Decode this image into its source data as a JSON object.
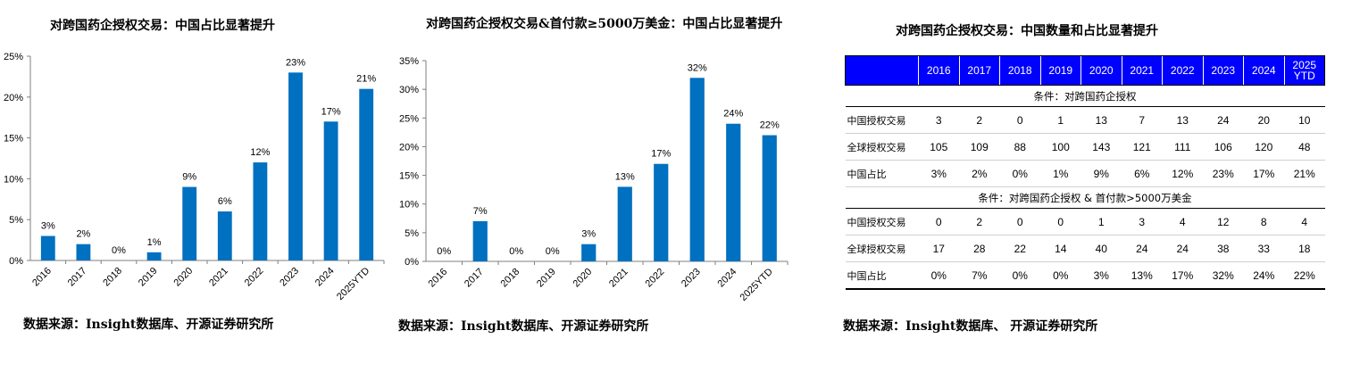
{
  "chart_data": [
    {
      "type": "bar",
      "title": "对跨国药企授权交易：中国占比显著提升",
      "categories": [
        "2016",
        "2017",
        "2018",
        "2019",
        "2020",
        "2021",
        "2022",
        "2023",
        "2024",
        "2025YTD"
      ],
      "values": [
        3,
        2,
        0,
        1,
        9,
        6,
        12,
        23,
        17,
        21
      ],
      "data_labels": [
        "3%",
        "2%",
        "0%",
        "1%",
        "9%",
        "6%",
        "12%",
        "23%",
        "17%",
        "21%"
      ],
      "y_ticks": [
        "0%",
        "5%",
        "10%",
        "15%",
        "20%",
        "25%"
      ],
      "ylim": [
        0,
        25
      ],
      "xlabel": "",
      "ylabel": "",
      "grid": false,
      "bar_color": "#0070c0",
      "source": "数据来源：Insight数据库、开源证券研究所"
    },
    {
      "type": "bar",
      "title": "对跨国药企授权交易&首付款≥5000万美金：中国占比显著提升",
      "categories": [
        "2016",
        "2017",
        "2018",
        "2019",
        "2020",
        "2021",
        "2022",
        "2023",
        "2024",
        "2025YTD"
      ],
      "values": [
        0,
        7,
        0,
        0,
        3,
        13,
        17,
        32,
        24,
        22
      ],
      "data_labels": [
        "0%",
        "7%",
        "0%",
        "0%",
        "3%",
        "13%",
        "17%",
        "32%",
        "24%",
        "22%"
      ],
      "y_ticks": [
        "0%",
        "5%",
        "10%",
        "15%",
        "20%",
        "25%",
        "30%",
        "35%"
      ],
      "ylim": [
        0,
        35
      ],
      "xlabel": "",
      "ylabel": "",
      "grid": false,
      "bar_color": "#0070c0",
      "source": "数据来源：Insight数据库、开源证券研究所"
    },
    {
      "type": "table",
      "title": "对跨国药企授权交易：中国数量和占比显著提升",
      "header_color": "#0000ff",
      "columns": [
        "",
        "2016",
        "2017",
        "2018",
        "2019",
        "2020",
        "2021",
        "2022",
        "2023",
        "2024",
        "2025\nYTD"
      ],
      "sections": [
        {
          "condition": "条件：对跨国药企授权",
          "rows": [
            {
              "label": "中国授权交易",
              "values": [
                "3",
                "2",
                "0",
                "1",
                "13",
                "7",
                "13",
                "24",
                "20",
                "10"
              ]
            },
            {
              "label": "全球授权交易",
              "values": [
                "105",
                "109",
                "88",
                "100",
                "143",
                "121",
                "111",
                "106",
                "120",
                "48"
              ]
            },
            {
              "label": "中国占比",
              "values": [
                "3%",
                "2%",
                "0%",
                "1%",
                "9%",
                "6%",
                "12%",
                "23%",
                "17%",
                "21%"
              ]
            }
          ]
        },
        {
          "condition": "条件：对跨国药企授权 & 首付款>5000万美金",
          "rows": [
            {
              "label": "中国授权交易",
              "values": [
                "0",
                "2",
                "0",
                "0",
                "1",
                "3",
                "4",
                "12",
                "8",
                "4"
              ]
            },
            {
              "label": "全球授权交易",
              "values": [
                "17",
                "28",
                "22",
                "14",
                "40",
                "24",
                "24",
                "38",
                "33",
                "18"
              ]
            },
            {
              "label": "中国占比",
              "values": [
                "0%",
                "7%",
                "0%",
                "0%",
                "3%",
                "13%",
                "17%",
                "32%",
                "24%",
                "22%"
              ]
            }
          ]
        }
      ],
      "source": "数据来源：Insight数据库、 开源证券研究所"
    }
  ]
}
